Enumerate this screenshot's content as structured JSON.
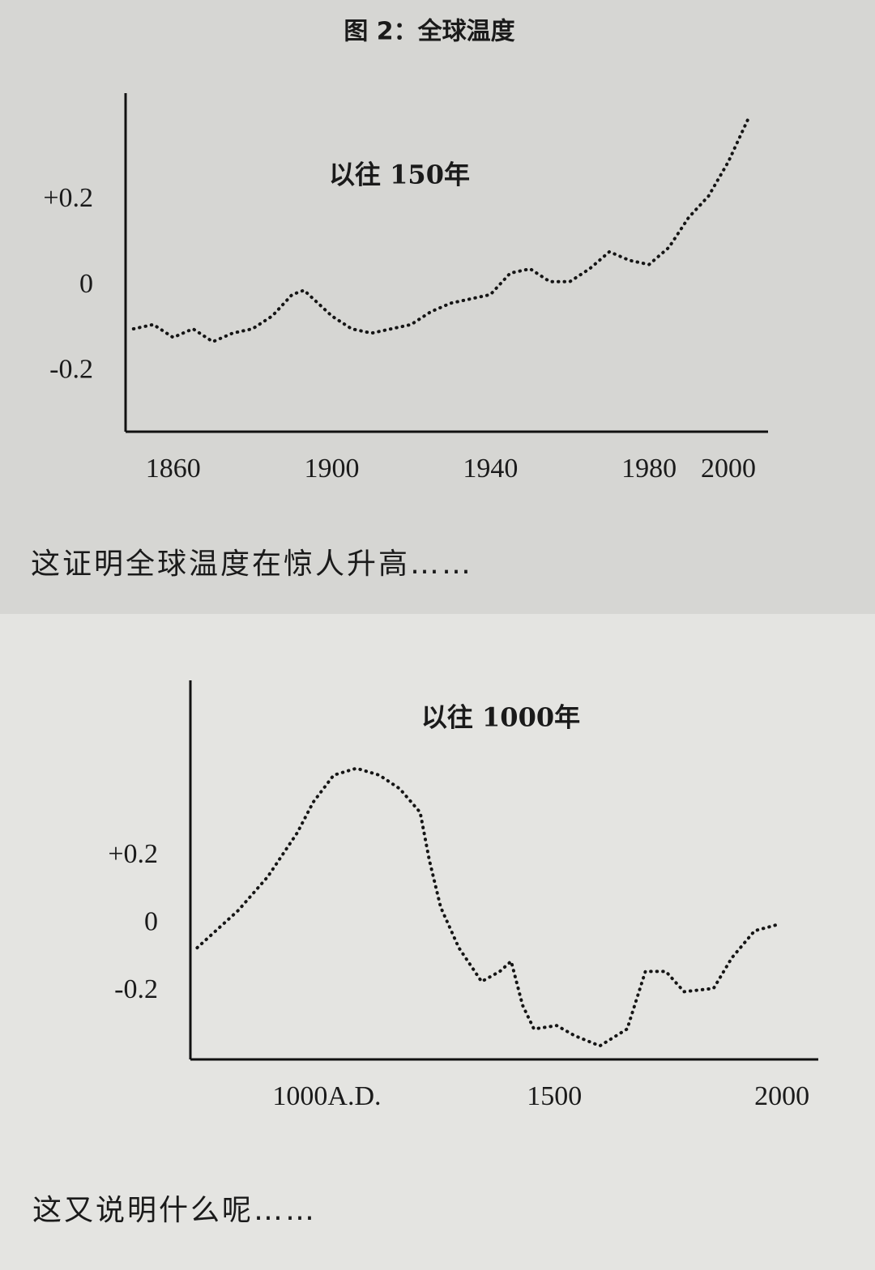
{
  "chart_data": [
    {
      "type": "line",
      "title": "图 2：全球温度",
      "annotation": "以往 150年",
      "caption": "这证明全球温度在惊人升高……",
      "color": "#151515",
      "x": [
        1850,
        1855,
        1860,
        1865,
        1870,
        1875,
        1880,
        1885,
        1890,
        1893,
        1900,
        1905,
        1910,
        1920,
        1925,
        1930,
        1935,
        1940,
        1945,
        1950,
        1955,
        1960,
        1965,
        1970,
        1975,
        1980,
        1985,
        1990,
        1995,
        2000,
        2005
      ],
      "values": [
        -0.1,
        -0.09,
        -0.12,
        -0.1,
        -0.13,
        -0.11,
        -0.1,
        -0.07,
        -0.02,
        -0.01,
        -0.07,
        -0.1,
        -0.11,
        -0.09,
        -0.06,
        -0.04,
        -0.03,
        -0.02,
        0.03,
        0.04,
        0.01,
        0.01,
        0.04,
        0.08,
        0.06,
        0.05,
        0.09,
        0.16,
        0.21,
        0.29,
        0.39
      ],
      "xlim": [
        1848,
        2010
      ],
      "xticks": [
        1860,
        1900,
        1940,
        1980,
        2000
      ],
      "ylim": [
        -0.34,
        0.45
      ],
      "yticks": [
        {
          "value": 0.2,
          "label": "+0.2"
        },
        0,
        -0.2
      ]
    },
    {
      "type": "line",
      "annotation": "以往 1000年",
      "caption": "这又说明什么呢……",
      "color": "#151515",
      "x": [
        715,
        805,
        870,
        935,
        970,
        1015,
        1065,
        1115,
        1160,
        1205,
        1225,
        1250,
        1290,
        1340,
        1380,
        1405,
        1430,
        1455,
        1505,
        1545,
        1600,
        1660,
        1700,
        1745,
        1785,
        1850,
        1890,
        1940,
        1995
      ],
      "values": [
        -0.07,
        0.04,
        0.14,
        0.27,
        0.36,
        0.44,
        0.46,
        0.44,
        0.4,
        0.33,
        0.19,
        0.05,
        -0.07,
        -0.17,
        -0.14,
        -0.11,
        -0.24,
        -0.31,
        -0.3,
        -0.33,
        -0.36,
        -0.31,
        -0.14,
        -0.14,
        -0.2,
        -0.19,
        -0.1,
        -0.02,
        0.0
      ],
      "xlim": [
        700,
        2080
      ],
      "xticks": [
        {
          "value": 1000,
          "label": "1000A.D."
        },
        1500,
        2000
      ],
      "ylim": [
        -0.4,
        0.72
      ],
      "yticks": [
        {
          "value": 0.2,
          "label": "+0.2"
        },
        0,
        -0.2
      ]
    }
  ]
}
